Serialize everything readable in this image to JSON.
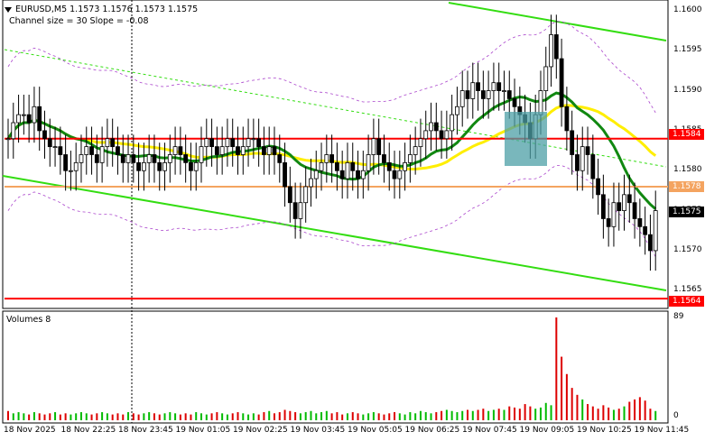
{
  "header": {
    "symbol_line": "EURUSD,M5  1.1573 1.1576 1.1573 1.1575",
    "channel_line": "Channel size = 30 Slope = -0.08"
  },
  "volume_panel": {
    "title": "Volumes 8",
    "max_label": "89",
    "min_label": "0"
  },
  "price_tags": {
    "level_1584": {
      "label": "1.1584",
      "color": "#ff0000"
    },
    "level_1578": {
      "label": "1.1578",
      "color": "#f4a460"
    },
    "level_1575": {
      "label": "1.1575",
      "color": "#000000"
    },
    "level_1564": {
      "label": "1.1564",
      "color": "#ff0000"
    }
  },
  "chart_data": {
    "type": "candlestick",
    "symbol": "EURUSD",
    "timeframe": "M5",
    "ylim": [
      1.1563,
      1.1601
    ],
    "y_ticks": [
      "1.1600",
      "1.1595",
      "1.1590",
      "1.1585",
      "1.1580",
      "1.1575",
      "1.1570",
      "1.1565"
    ],
    "x_ticks": [
      "18 Nov 2025",
      "18 Nov 22:25",
      "18 Nov 23:45",
      "19 Nov 01:05",
      "19 Nov 02:25",
      "19 Nov 03:45",
      "19 Nov 05:05",
      "19 Nov 06:25",
      "19 Nov 07:45",
      "19 Nov 09:05",
      "19 Nov 10:25",
      "19 Nov 11:45"
    ],
    "horizontal_levels": [
      1.1584,
      1.1578,
      1.1564
    ],
    "last_price": 1.1575,
    "close_series": [
      1.1584,
      1.1586,
      1.1587,
      1.1587,
      1.1586,
      1.1588,
      1.1585,
      1.1584,
      1.1583,
      1.1583,
      1.1582,
      1.158,
      1.158,
      1.1581,
      1.1582,
      1.1583,
      1.1582,
      1.1581,
      1.1583,
      1.1584,
      1.1583,
      1.1582,
      1.1581,
      1.1582,
      1.1581,
      1.158,
      1.1581,
      1.1582,
      1.1581,
      1.158,
      1.1581,
      1.1582,
      1.1583,
      1.1582,
      1.1581,
      1.158,
      1.1581,
      1.1583,
      1.1584,
      1.1583,
      1.1582,
      1.1583,
      1.1584,
      1.1583,
      1.1582,
      1.1583,
      1.1584,
      1.1584,
      1.1583,
      1.1582,
      1.1583,
      1.1582,
      1.1581,
      1.1578,
      1.1576,
      1.1574,
      1.1576,
      1.1578,
      1.1579,
      1.158,
      1.1581,
      1.1582,
      1.1581,
      1.158,
      1.1579,
      1.1581,
      1.158,
      1.1579,
      1.158,
      1.1582,
      1.1584,
      1.1582,
      1.1581,
      1.158,
      1.1579,
      1.158,
      1.1581,
      1.1582,
      1.1583,
      1.1584,
      1.1585,
      1.1586,
      1.1585,
      1.1584,
      1.1585,
      1.1587,
      1.1588,
      1.159,
      1.1589,
      1.1591,
      1.159,
      1.1589,
      1.159,
      1.1591,
      1.159,
      1.159,
      1.1589,
      1.1588,
      1.1587,
      1.1586,
      1.1584,
      1.1587,
      1.159,
      1.1593,
      1.1597,
      1.1594,
      1.1588,
      1.1585,
      1.1582,
      1.158,
      1.1583,
      1.1582,
      1.1579,
      1.1577,
      1.1574,
      1.1573,
      1.1576,
      1.1575,
      1.1577,
      1.1576,
      1.1574,
      1.1573,
      1.1572,
      1.157,
      1.1575
    ],
    "volumes": [
      8,
      6,
      7,
      6,
      5,
      7,
      6,
      5,
      6,
      7,
      5,
      6,
      5,
      6,
      7,
      6,
      5,
      6,
      7,
      6,
      5,
      6,
      5,
      7,
      6,
      5,
      6,
      7,
      6,
      5,
      6,
      7,
      6,
      5,
      6,
      5,
      7,
      6,
      5,
      6,
      7,
      6,
      5,
      6,
      7,
      6,
      5,
      6,
      5,
      7,
      8,
      6,
      7,
      9,
      8,
      7,
      6,
      7,
      8,
      6,
      7,
      8,
      6,
      7,
      5,
      6,
      7,
      6,
      5,
      6,
      7,
      6,
      5,
      6,
      7,
      6,
      5,
      7,
      6,
      8,
      7,
      6,
      7,
      8,
      9,
      8,
      7,
      8,
      9,
      8,
      9,
      10,
      8,
      9,
      10,
      9,
      12,
      11,
      10,
      14,
      12,
      10,
      11,
      15,
      13,
      89,
      55,
      40,
      28,
      22,
      18,
      14,
      12,
      10,
      13,
      11,
      9,
      10,
      12,
      16,
      18,
      20,
      17,
      10,
      8
    ]
  }
}
